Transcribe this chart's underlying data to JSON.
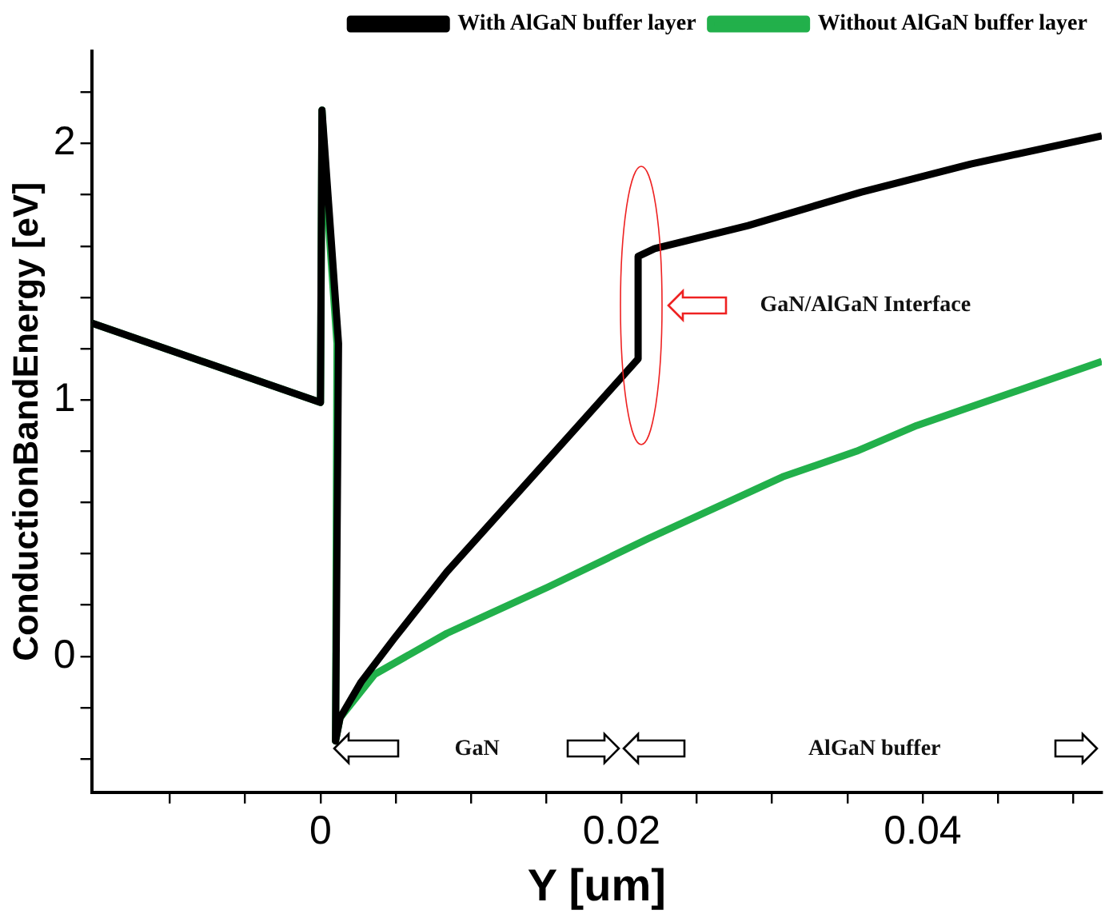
{
  "chart_data": {
    "type": "line",
    "xlabel": "Y [um]",
    "ylabel": "ConductionBandEnergy [eV]",
    "series": [
      {
        "name": "With AlGaN buffer layer",
        "color": "#000000",
        "x": [
          -0.0152,
          0,
          0.0001,
          0.0012,
          0.001,
          0.0013,
          0.0027,
          0.0049,
          0.0084,
          0.0156,
          0.0211,
          0.0211,
          0.0222,
          0.0284,
          0.0359,
          0.0432,
          0.0519
        ],
        "values": [
          1.3,
          0.99,
          2.13,
          1.22,
          -0.33,
          -0.24,
          -0.1,
          0.07,
          0.33,
          0.8,
          1.16,
          1.56,
          1.59,
          1.68,
          1.81,
          1.92,
          2.03
        ]
      },
      {
        "name": "Without AlGaN buffer layer",
        "color": "#22b04b",
        "x": [
          -0.0152,
          0,
          0.0001,
          0.0004,
          0.0011,
          0.001,
          0.0013,
          0.0036,
          0.0084,
          0.0151,
          0.0218,
          0.0307,
          0.0356,
          0.0396,
          0.0519
        ],
        "values": [
          1.3,
          0.99,
          2.13,
          1.8,
          1.22,
          -0.33,
          -0.24,
          -0.07,
          0.09,
          0.27,
          0.46,
          0.7,
          0.8,
          0.9,
          1.15
        ]
      }
    ],
    "xlim": [
      -0.0152,
      0.0519
    ],
    "xticks": [
      {
        "value": -0.01,
        "label": null
      },
      {
        "value": -0.005,
        "label": null
      },
      0,
      {
        "value": 0.005,
        "label": null
      },
      {
        "value": 0.01,
        "label": null
      },
      {
        "value": 0.015,
        "label": null
      },
      0.02,
      {
        "value": 0.025,
        "label": null
      },
      {
        "value": 0.03,
        "label": null
      },
      {
        "value": 0.035,
        "label": null
      },
      0.04,
      {
        "value": 0.045,
        "label": null
      },
      {
        "value": 0.05,
        "label": null
      }
    ],
    "ylim": [
      -0.53,
      2.36
    ],
    "yticks": [
      {
        "value": -0.4,
        "label": null
      },
      {
        "value": -0.2,
        "label": null
      },
      0,
      {
        "value": 0.2,
        "label": null
      },
      {
        "value": 0.4,
        "label": null
      },
      {
        "value": 0.6,
        "label": null
      },
      {
        "value": 0.8,
        "label": null
      },
      1,
      {
        "value": 1.2,
        "label": null
      },
      {
        "value": 1.4,
        "label": null
      },
      {
        "value": 1.6,
        "label": null
      },
      {
        "value": 1.8,
        "label": null
      },
      2,
      {
        "value": 2.2,
        "label": null
      }
    ],
    "grid": false,
    "legend": "top right",
    "marker": "none",
    "line_style": "solid",
    "annotations": [
      "GaN/AlGaN Interface",
      "GaN",
      "AlGaN buffer"
    ]
  }
}
